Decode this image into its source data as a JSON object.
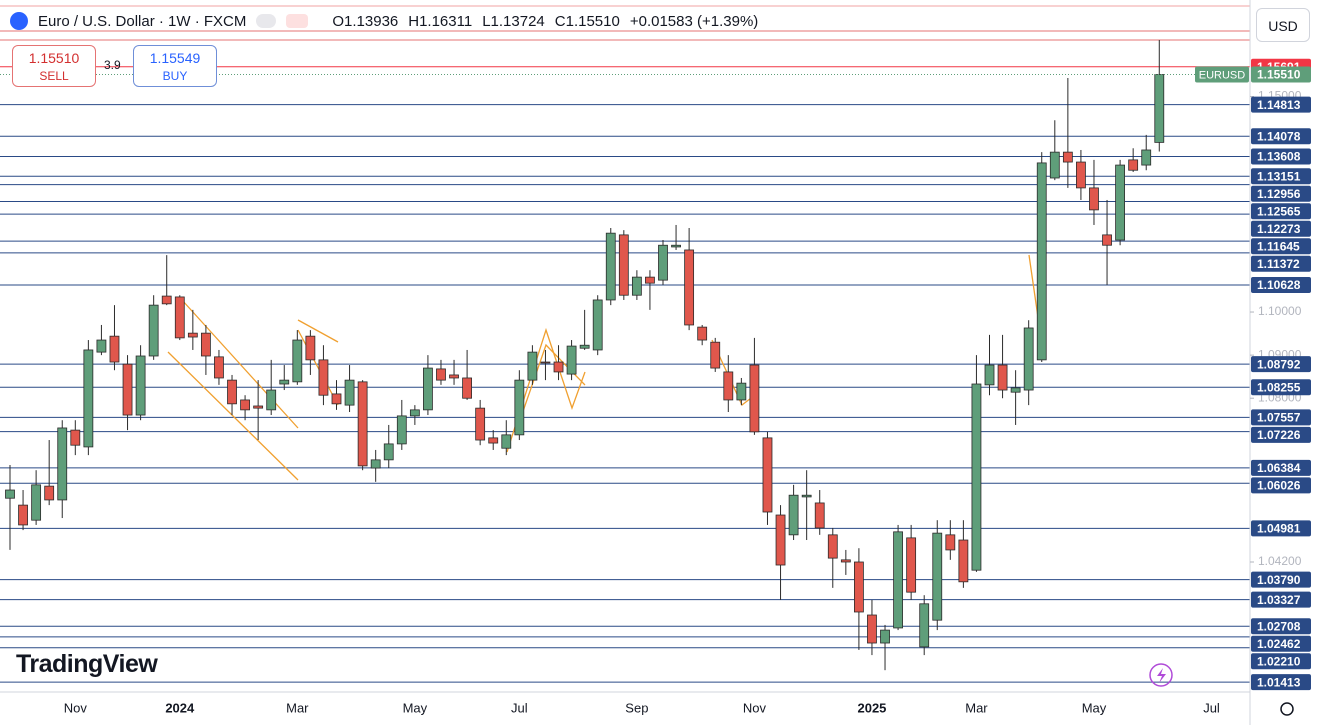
{
  "header": {
    "symbol": "Euro / U.S. Dollar · 1W · FXCM",
    "open": "O1.13936",
    "high": "H1.16311",
    "low": "L1.13724",
    "close": "C1.15510",
    "change": "+0.01583 (+1.39%)"
  },
  "trade": {
    "sell_price": "1.15510",
    "sell": "SELL",
    "spread": "3.9",
    "buy_price": "1.15549",
    "buy": "BUY"
  },
  "currency": "USD",
  "brand": "TradingView",
  "chart_data": {
    "type": "candlestick",
    "symbol": "EURUSD",
    "categories": [
      null,
      null,
      null,
      null,
      null,
      "Nov",
      null,
      null,
      null,
      null,
      null,
      null,
      null,
      "2024",
      null,
      null,
      null,
      null,
      null,
      null,
      null,
      null,
      "Mar",
      null,
      null,
      null,
      null,
      null,
      null,
      null,
      null,
      "May",
      null,
      null,
      null,
      null,
      null,
      null,
      null,
      "Jul",
      null,
      null,
      null,
      null,
      null,
      null,
      null,
      null,
      "Sep",
      null,
      null,
      null,
      null,
      null,
      null,
      null,
      null,
      "Nov",
      null,
      null,
      null,
      null,
      null,
      null,
      null,
      null,
      "2025",
      null,
      null,
      null,
      null,
      null,
      null,
      null,
      "Mar",
      null,
      null,
      null,
      null,
      null,
      null,
      null,
      null,
      "May",
      null,
      null,
      null,
      null,
      null,
      null,
      null,
      null,
      "Jul",
      null,
      null
    ],
    "open": [
      1.0568,
      1.0552,
      1.0517,
      1.0596,
      1.0564,
      1.0726,
      1.0687,
      1.0907,
      1.0944,
      1.0879,
      1.0761,
      1.0898,
      1.1037,
      1.1035,
      1.0951,
      1.0951,
      1.0896,
      1.0842,
      1.0796,
      1.0782,
      1.0773,
      1.0833,
      1.0838,
      1.0944,
      1.0889,
      1.081,
      1.0784,
      1.0838,
      1.0638,
      1.0657,
      1.0694,
      1.0759,
      1.0773,
      1.0868,
      1.0854,
      1.0847,
      1.0777,
      1.0708,
      1.0684,
      1.0715,
      1.0842,
      1.0884,
      1.0884,
      1.0856,
      1.0916,
      1.0912,
      1.1028,
      1.1179,
      1.1039,
      1.1081,
      1.1074,
      1.1151,
      1.1144,
      1.0965,
      1.093,
      1.0861,
      1.0796,
      1.0877,
      1.0708,
      1.0529,
      1.0483,
      1.0571,
      1.0557,
      1.0483,
      1.0425,
      1.042,
      1.0297,
      1.0232,
      1.0267,
      1.0476,
      1.0223,
      1.0285,
      1.0483,
      1.0471,
      1.0401,
      1.0831,
      1.0877,
      1.0814,
      1.0819,
      1.0889,
      1.1311,
      1.1371,
      1.1348,
      1.1288,
      1.1179,
      1.1167,
      1.1353,
      1.1341,
      1.13936,
      null,
      null,
      null,
      null,
      null,
      null
    ],
    "high": [
      1.0645,
      1.0587,
      1.0633,
      1.0703,
      1.0749,
      1.0749,
      1.0935,
      1.097,
      1.1016,
      1.09,
      1.0923,
      1.1039,
      1.1132,
      1.1039,
      1.1005,
      1.097,
      1.0912,
      1.0854,
      1.0807,
      1.0842,
      1.0889,
      1.0877,
      1.0958,
      1.0958,
      1.0923,
      1.0842,
      1.0877,
      1.0842,
      1.068,
      1.0738,
      1.0796,
      1.0784,
      1.09,
      1.0889,
      1.0889,
      1.0912,
      1.0796,
      1.0726,
      1.0749,
      1.0865,
      1.0923,
      1.0912,
      1.0923,
      1.0935,
      1.1005,
      1.1039,
      1.1195,
      1.119,
      1.1097,
      1.1097,
      1.1167,
      1.1202,
      1.1195,
      1.097,
      1.094,
      1.09,
      1.0847,
      1.094,
      1.0722,
      1.0552,
      1.0599,
      1.0633,
      1.0587,
      1.0499,
      1.0448,
      1.0452,
      1.0332,
      1.0274,
      1.0506,
      1.0506,
      1.0343,
      1.0517,
      1.0517,
      1.0517,
      1.09,
      1.0947,
      1.0947,
      1.0865,
      1.0981,
      1.1371,
      1.1445,
      1.1543,
      1.1376,
      1.1353,
      1.126,
      1.1353,
      1.138,
      1.1411,
      1.16311,
      null,
      null,
      null,
      null,
      null,
      null
    ],
    "low": [
      1.0448,
      1.0494,
      1.0506,
      1.0552,
      1.0522,
      1.0668,
      1.0668,
      1.09,
      1.0865,
      1.0726,
      1.0749,
      1.0889,
      1.1016,
      1.0935,
      1.0912,
      1.0854,
      1.0831,
      1.0761,
      1.0749,
      1.0703,
      1.0761,
      1.0819,
      1.0831,
      1.0854,
      1.0784,
      1.0773,
      1.0768,
      1.0633,
      1.0606,
      1.0638,
      1.068,
      1.0738,
      1.0761,
      1.0831,
      1.0831,
      1.0796,
      1.0691,
      1.068,
      1.0668,
      1.0703,
      1.0831,
      1.0842,
      1.0842,
      1.0842,
      1.0912,
      1.09,
      1.1016,
      1.1028,
      1.1028,
      1.1005,
      1.1063,
      1.1144,
      1.0958,
      1.0923,
      1.0861,
      1.0768,
      1.0784,
      1.0715,
      1.0506,
      1.0332,
      1.0471,
      1.0471,
      1.0483,
      1.036,
      1.039,
      1.0216,
      1.0204,
      1.0169,
      1.0262,
      1.0332,
      1.0204,
      1.0262,
      1.0425,
      1.036,
      1.0397,
      1.0807,
      1.08,
      1.0738,
      1.0784,
      1.0884,
      1.1306,
      1.1288,
      1.126,
      1.1202,
      1.1063,
      1.1155,
      1.1325,
      1.1329,
      1.13724,
      null,
      null,
      null,
      null,
      null,
      null
    ],
    "close": [
      1.0587,
      1.0506,
      1.0599,
      1.0564,
      1.0731,
      1.0691,
      1.0912,
      1.0935,
      1.0884,
      1.0761,
      1.0898,
      1.1016,
      1.1019,
      1.094,
      1.0942,
      1.0898,
      1.0847,
      1.0787,
      1.0773,
      1.0777,
      1.0819,
      1.0842,
      1.0935,
      1.0889,
      1.0807,
      1.0787,
      1.0842,
      1.0643,
      1.0657,
      1.0694,
      1.0759,
      1.0773,
      1.087,
      1.0842,
      1.0847,
      1.08,
      1.0703,
      1.0696,
      1.0715,
      1.0842,
      1.0907,
      1.0882,
      1.0861,
      1.0921,
      1.0923,
      1.1028,
      1.1183,
      1.1039,
      1.1081,
      1.1067,
      1.1155,
      1.1155,
      1.097,
      1.0935,
      1.087,
      1.0796,
      1.0835,
      1.0722,
      1.0536,
      1.0413,
      1.0575,
      1.0575,
      1.0499,
      1.0429,
      1.042,
      1.0304,
      1.0232,
      1.0262,
      1.049,
      1.035,
      1.0323,
      1.0487,
      1.0448,
      1.0374,
      1.0833,
      1.0877,
      1.0819,
      1.0824,
      1.0963,
      1.1346,
      1.1371,
      1.1348,
      1.1288,
      1.1237,
      1.1155,
      1.1341,
      1.1329,
      1.1376,
      1.1551,
      null,
      null,
      null,
      null,
      null,
      null
    ],
    "last_close_label": "1.15510",
    "up_color": "#5f9e7a",
    "down_color": "#e0574c",
    "ylim": [
      1.0123,
      1.1724
    ],
    "yticks": [
      {
        "value": 1.15,
        "label": "1.15000"
      },
      {
        "value": 1.1,
        "label": "1.10000"
      },
      {
        "value": 1.09,
        "label": "1.09000"
      },
      {
        "value": 1.08,
        "label": "1.08000"
      },
      {
        "value": 1.042,
        "label": "1.04200"
      }
    ],
    "grid": false,
    "level_color": "#2a4a86",
    "levels": [
      {
        "value": 1.15691,
        "label": "1.15691",
        "color": "#f23645"
      },
      1.14813,
      1.14078,
      1.13608,
      1.13151,
      1.12956,
      1.12565,
      1.12273,
      1.11645,
      1.11372,
      1.10628,
      1.08792,
      1.08255,
      1.07557,
      1.07226,
      1.06384,
      1.06026,
      1.04981,
      {
        "value": 1.0379,
        "label": "1.03790"
      },
      1.03327,
      1.02708,
      1.02462,
      {
        "value": 1.0221,
        "label": "1.02210"
      },
      1.01413
    ]
  }
}
